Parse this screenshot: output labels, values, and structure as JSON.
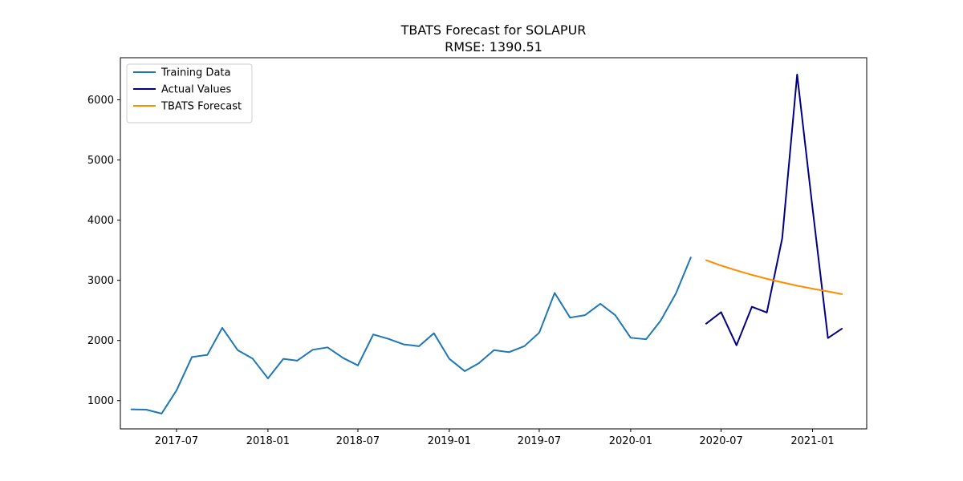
{
  "chart_data": {
    "type": "line",
    "title": "TBATS Forecast for SOLAPUR",
    "subtitle": "RMSE: 1390.51",
    "xlabel": "",
    "ylabel": "",
    "xlim": [
      "2017-03-10",
      "2021-04-20"
    ],
    "ylim": [
      530,
      6700
    ],
    "grid": false,
    "legend_position": "top-left",
    "x_ticks": [
      "2017-07",
      "2018-01",
      "2018-07",
      "2019-01",
      "2019-07",
      "2020-01",
      "2020-07",
      "2021-01"
    ],
    "y_ticks": [
      1000,
      2000,
      3000,
      4000,
      5000,
      6000
    ],
    "series": [
      {
        "name": "Training Data",
        "color": "#1f77b4",
        "x": [
          "2017-04",
          "2017-05",
          "2017-06",
          "2017-07",
          "2017-08",
          "2017-09",
          "2017-10",
          "2017-11",
          "2017-12",
          "2018-01",
          "2018-02",
          "2018-03",
          "2018-04",
          "2018-05",
          "2018-06",
          "2018-07",
          "2018-08",
          "2018-09",
          "2018-10",
          "2018-11",
          "2018-12",
          "2019-01",
          "2019-02",
          "2019-03",
          "2019-04",
          "2019-05",
          "2019-06",
          "2019-07",
          "2019-08",
          "2019-09",
          "2019-10",
          "2019-11",
          "2019-12",
          "2020-01",
          "2020-02",
          "2020-03",
          "2020-04",
          "2020-05"
        ],
        "y": [
          855,
          850,
          785,
          1170,
          1725,
          1760,
          2210,
          1840,
          1700,
          1370,
          1695,
          1665,
          1845,
          1885,
          1710,
          1585,
          2100,
          2025,
          1935,
          1905,
          2120,
          1695,
          1490,
          1620,
          1840,
          1805,
          1905,
          2130,
          2790,
          2380,
          2420,
          2610,
          2420,
          2045,
          2020,
          2325,
          2780,
          3380
        ]
      },
      {
        "name": "Actual Values",
        "color": "#000080",
        "x": [
          "2020-06",
          "2020-07",
          "2020-08",
          "2020-09",
          "2020-10",
          "2020-11",
          "2020-12",
          "2021-01",
          "2021-02",
          "2021-03"
        ],
        "y": [
          2280,
          2470,
          1920,
          2560,
          2465,
          3700,
          6420,
          4200,
          2040,
          2195
        ]
      },
      {
        "name": "TBATS Forecast",
        "color": "#ff8c00",
        "x": [
          "2020-06",
          "2020-07",
          "2020-08",
          "2020-09",
          "2020-10",
          "2020-11",
          "2020-12",
          "2021-01",
          "2021-02",
          "2021-03"
        ],
        "y": [
          3335,
          3245,
          3165,
          3090,
          3025,
          2965,
          2910,
          2860,
          2815,
          2770
        ]
      }
    ]
  }
}
